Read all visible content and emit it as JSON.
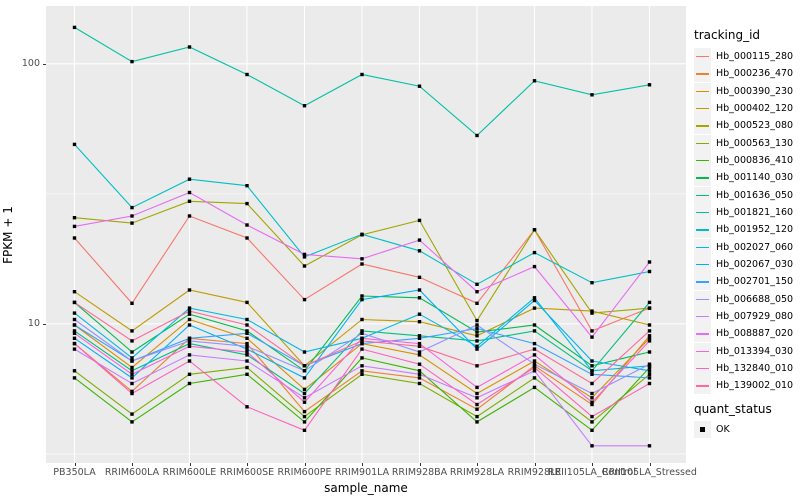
{
  "axes": {
    "x_title": "sample_name",
    "y_title": "FPKM + 1",
    "y_tick_labels": [
      "100",
      "10"
    ]
  },
  "legend": {
    "tracking_title": "tracking_id",
    "quant_title": "quant_status",
    "quant_ok_label": "OK"
  },
  "colors": {
    "panel_background": "#EBEBEB",
    "gridline": "#FFFFFF",
    "legend_key_background": "#F2F2F2",
    "point": "#000000",
    "tick_text": "#4D4D4D",
    "tick_mark": "#333333"
  },
  "chart_data": {
    "type": "line",
    "x_type": "categorical",
    "y_scale": "log10",
    "title": "",
    "xlabel": "sample_name",
    "ylabel": "FPKM + 1",
    "y_ticks": [
      100,
      10
    ],
    "y_minor_ticks": [
      31.62,
      3.162
    ],
    "ylim": [
      2.9,
      158
    ],
    "grid": "white major and minor lines on gray panel",
    "legend_position": "right",
    "point_shape": "filled-black-square (quant_status OK)",
    "categories": [
      "PB350LA",
      "RRIM600LA",
      "RRIM600LE",
      "RRIM600SE",
      "RRIM600PE",
      "RRIM901LA",
      "RRIM928BA",
      "RRIM928LA",
      "RRIM928LE",
      "RRII105LA_Control",
      "RRII105LA_Stressed"
    ],
    "series": [
      {
        "name": "Hb_000115_280",
        "color": "#F8766D",
        "values": [
          21.4,
          12.0,
          26.0,
          21.4,
          12.4,
          17.0,
          15.1,
          12.0,
          23.0,
          9.4,
          11.5
        ]
      },
      {
        "name": "Hb_000236_470",
        "color": "#EA8331",
        "values": [
          8.4,
          5.5,
          8.8,
          8.4,
          4.6,
          6.6,
          6.2,
          4.7,
          6.9,
          4.9,
          9.0
        ]
      },
      {
        "name": "Hb_000390_230",
        "color": "#D89000",
        "values": [
          9.9,
          6.8,
          10.4,
          8.8,
          5.6,
          8.4,
          7.6,
          5.4,
          7.2,
          5.2,
          8.8
        ]
      },
      {
        "name": "Hb_000402_120",
        "color": "#C09B00",
        "values": [
          13.3,
          9.4,
          13.5,
          12.1,
          6.9,
          10.4,
          10.2,
          9.0,
          11.5,
          11.2,
          9.9
        ]
      },
      {
        "name": "Hb_000523_080",
        "color": "#A3A500",
        "values": [
          25.6,
          24.4,
          29.6,
          29.0,
          16.7,
          22.0,
          25.0,
          10.3,
          23.0,
          11.0,
          11.5
        ]
      },
      {
        "name": "Hb_000563_130",
        "color": "#7CAE00",
        "values": [
          6.6,
          4.5,
          6.4,
          6.8,
          4.4,
          6.4,
          5.9,
          4.4,
          6.2,
          4.2,
          6.4
        ]
      },
      {
        "name": "Hb_000836_410",
        "color": "#39B600",
        "values": [
          6.2,
          4.2,
          5.9,
          6.4,
          4.2,
          7.4,
          6.6,
          4.2,
          5.7,
          3.9,
          6.8
        ]
      },
      {
        "name": "Hb_001140_030",
        "color": "#00BB4E",
        "values": [
          12.1,
          7.8,
          10.9,
          9.4,
          6.6,
          12.8,
          12.6,
          9.3,
          9.9,
          6.9,
          7.8
        ]
      },
      {
        "name": "Hb_001636_050",
        "color": "#00BF7D",
        "values": [
          9.4,
          6.6,
          8.4,
          7.6,
          5.4,
          9.4,
          9.0,
          8.6,
          9.4,
          6.6,
          12.1
        ]
      },
      {
        "name": "Hb_001821_160",
        "color": "#00C1A3",
        "values": [
          138,
          102,
          116,
          91,
          69,
          91,
          82,
          53,
          86,
          76,
          83
        ]
      },
      {
        "name": "Hb_001952_120",
        "color": "#00BFC4",
        "values": [
          49,
          28,
          36,
          34,
          18.1,
          22.1,
          19.1,
          14.2,
          18.8,
          14.4,
          15.9
        ]
      },
      {
        "name": "Hb_002027_060",
        "color": "#00BAE0",
        "values": [
          11.0,
          7.4,
          11.5,
          10.4,
          7.8,
          8.8,
          10.9,
          8.2,
          12.6,
          6.6,
          6.9
        ]
      },
      {
        "name": "Hb_002067_030",
        "color": "#00B0F6",
        "values": [
          8.8,
          6.2,
          9.9,
          8.0,
          6.2,
          12.4,
          13.5,
          8.0,
          12.3,
          7.2,
          6.6
        ]
      },
      {
        "name": "Hb_002701_150",
        "color": "#35A2FF",
        "values": [
          9.9,
          7.2,
          8.8,
          9.2,
          6.9,
          8.4,
          8.8,
          9.6,
          8.4,
          6.4,
          6.2
        ]
      },
      {
        "name": "Hb_006688_050",
        "color": "#9590FF",
        "values": [
          10.4,
          7.2,
          8.6,
          8.2,
          6.6,
          9.2,
          7.8,
          9.9,
          7.0,
          5.4,
          7.0
        ]
      },
      {
        "name": "Hb_007929_080",
        "color": "#C77CFF",
        "values": [
          8.0,
          5.9,
          7.6,
          7.2,
          5.2,
          6.9,
          6.4,
          5.2,
          6.6,
          3.4,
          3.4
        ]
      },
      {
        "name": "Hb_008887_020",
        "color": "#E76BF3",
        "values": [
          23.7,
          26.0,
          32.0,
          24.0,
          18.5,
          17.8,
          21.0,
          13.3,
          16.6,
          8.9,
          17.3
        ]
      },
      {
        "name": "Hb_013394_030",
        "color": "#FA62DB",
        "values": [
          9.2,
          6.4,
          8.2,
          7.8,
          5.0,
          8.8,
          8.4,
          5.7,
          7.6,
          5.0,
          8.6
        ]
      },
      {
        "name": "Hb_132840_010",
        "color": "#FF62BC",
        "values": [
          8.4,
          5.4,
          7.2,
          4.8,
          3.9,
          8.0,
          7.0,
          4.9,
          6.8,
          4.4,
          5.9
        ]
      },
      {
        "name": "Hb_139002_010",
        "color": "#FF6A98",
        "values": [
          12.1,
          8.6,
          11.2,
          9.9,
          6.9,
          8.6,
          8.2,
          6.9,
          8.0,
          5.9,
          9.4
        ]
      }
    ]
  }
}
